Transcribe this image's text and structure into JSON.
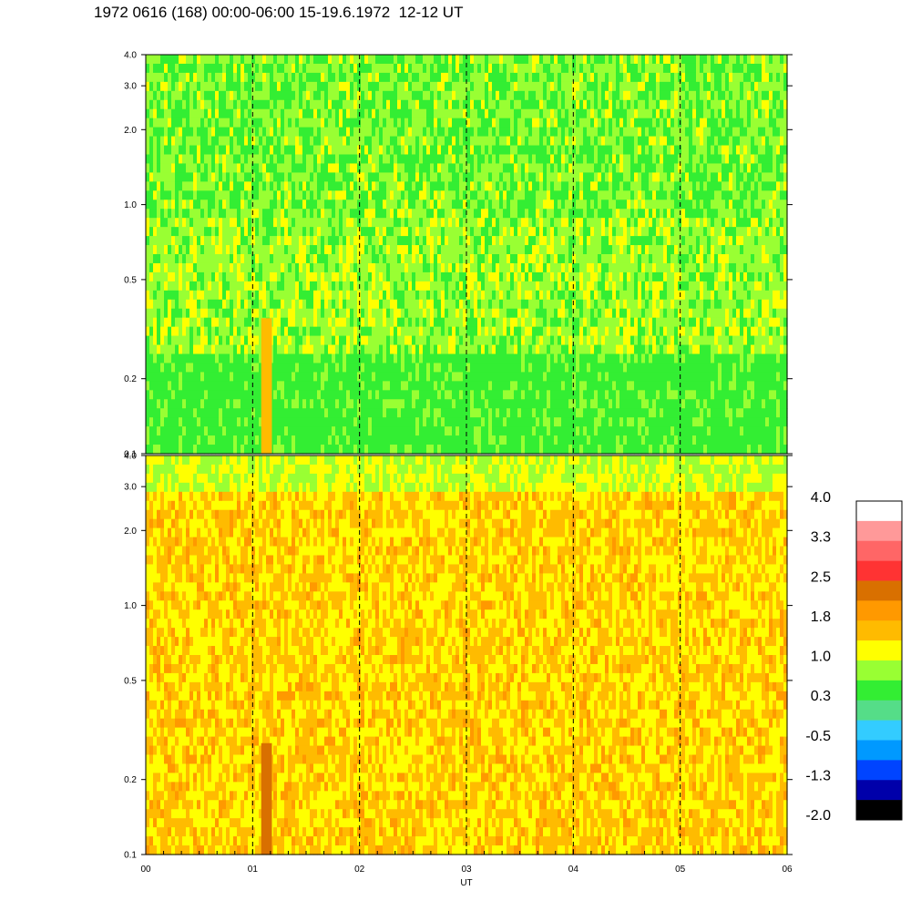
{
  "title": "1972 0616 (168) 00:00-06:00 15-19.6.1972  12-12 UT",
  "chart_data": {
    "type": "heatmap",
    "xlabel": "UT",
    "x_ticks": [
      "00",
      "01",
      "02",
      "03",
      "04",
      "05",
      "06"
    ],
    "xlim": [
      0,
      6
    ],
    "x_dashed_lines": [
      1,
      2,
      3,
      4,
      5
    ],
    "panels": [
      {
        "name": "",
        "y_scale": "log",
        "ylim": [
          0.1,
          4.0
        ],
        "y_ticks": [
          "0.1",
          "0.2",
          "0.5",
          "1.0",
          "2.0",
          "3.0",
          "4.0"
        ],
        "y_tick_values": [
          0.1,
          0.2,
          0.5,
          1.0,
          2.0,
          3.0,
          4.0
        ],
        "dominant_levels": [
          0.3,
          0.5,
          1.0
        ],
        "features": [
          {
            "x_range": [
              1.08,
              1.18
            ],
            "y_range": [
              0.1,
              0.35
            ],
            "level": 1.8
          }
        ]
      },
      {
        "name": "",
        "y_scale": "log",
        "ylim": [
          0.1,
          4.0
        ],
        "y_ticks": [
          "0.1",
          "0.2",
          "0.5",
          "1.0",
          "2.0",
          "3.0",
          "4.0"
        ],
        "y_tick_values": [
          0.1,
          0.2,
          0.5,
          1.0,
          2.0,
          3.0,
          4.0
        ],
        "dominant_levels": [
          1.0,
          1.5,
          1.8
        ],
        "features": [
          {
            "x_range": [
              1.08,
              1.18
            ],
            "y_range": [
              0.1,
              0.28
            ],
            "level": 2.5
          }
        ]
      }
    ],
    "colorbar": {
      "labels": [
        "4.0",
        "3.3",
        "2.5",
        "1.8",
        "1.0",
        "0.3",
        "-0.5",
        "-1.3",
        "-2.0"
      ],
      "colors": [
        "#ffffff",
        "#ff9999",
        "#ff6666",
        "#ff3333",
        "#d97000",
        "#ff9900",
        "#ffbb00",
        "#ffff00",
        "#99ff33",
        "#33ee33",
        "#55dd88",
        "#33ccff",
        "#0099ff",
        "#0044ff",
        "#0000aa",
        "#000000"
      ]
    }
  }
}
